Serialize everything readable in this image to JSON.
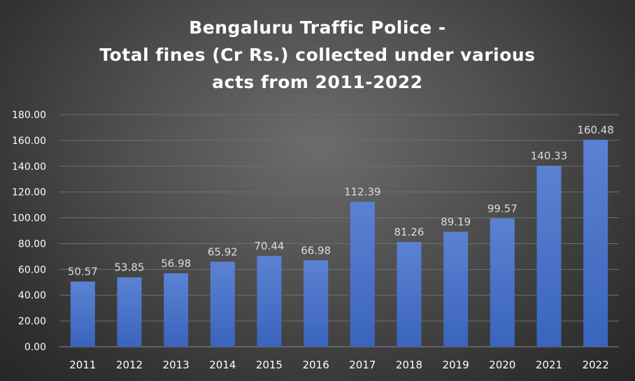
{
  "chart_data": {
    "type": "bar",
    "title_lines": [
      "Bengaluru Traffic Police -",
      "Total fines (Cr Rs.) collected under various",
      "acts from 2011-2022"
    ],
    "categories": [
      "2011",
      "2012",
      "2013",
      "2014",
      "2015",
      "2016",
      "2017",
      "2018",
      "2019",
      "2020",
      "2021",
      "2022"
    ],
    "values": [
      50.57,
      53.85,
      56.98,
      65.92,
      70.44,
      66.98,
      112.39,
      81.26,
      89.19,
      99.57,
      140.33,
      160.48
    ],
    "data_labels": [
      "50.57",
      "53.85",
      "56.98",
      "65.92",
      "70.44",
      "66.98",
      "112.39",
      "81.26",
      "89.19",
      "99.57",
      "140.33",
      "160.48"
    ],
    "yticks": [
      "0.00",
      "20.00",
      "40.00",
      "60.00",
      "80.00",
      "100.00",
      "120.00",
      "140.00",
      "160.00",
      "180.00"
    ],
    "ylim": [
      0,
      180
    ],
    "xlabel": "",
    "ylabel": "",
    "grid": true,
    "legend": "none",
    "colors": {
      "bar_top": "#5b82d2",
      "bar_bottom": "#3a64bd",
      "grid": "#6f6f6f",
      "text": "#ffffff",
      "label_text": "#dcdcdc"
    }
  }
}
